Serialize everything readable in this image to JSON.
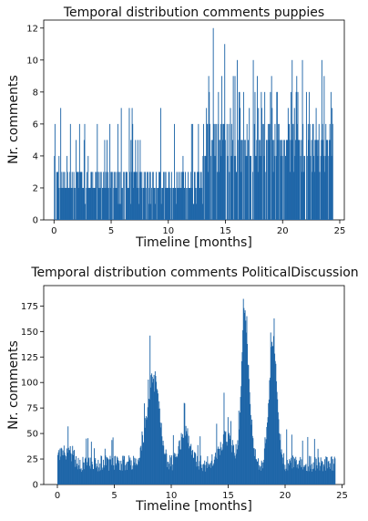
{
  "colors": {
    "bar": "#1f66a8",
    "axis": "#000000",
    "text": "#111111"
  },
  "chart_data": [
    {
      "type": "bar",
      "title": "Temporal distribution comments puppies",
      "xlabel": "Timeline [months]",
      "ylabel": "Nr. comments",
      "xlim": [
        -0.9,
        25.4
      ],
      "ylim": [
        0,
        12.5
      ],
      "xticks": [
        0,
        5,
        10,
        15,
        20,
        25
      ],
      "yticks": [
        0,
        2,
        4,
        6,
        8,
        10,
        12
      ],
      "grid": false,
      "bin_width_months": 0.05,
      "data_range": [
        0.0,
        24.4
      ],
      "peaks": [
        {
          "x": 0.4,
          "y": 4
        },
        {
          "x": 2.2,
          "y": 6
        },
        {
          "x": 4.6,
          "y": 5
        },
        {
          "x": 6.8,
          "y": 7
        },
        {
          "x": 9.3,
          "y": 7
        },
        {
          "x": 12.0,
          "y": 6
        },
        {
          "x": 13.5,
          "y": 9
        },
        {
          "x": 13.9,
          "y": 12
        },
        {
          "x": 14.9,
          "y": 11
        },
        {
          "x": 16.0,
          "y": 10
        },
        {
          "x": 17.4,
          "y": 10
        },
        {
          "x": 19.0,
          "y": 9
        },
        {
          "x": 22.3,
          "y": 8
        },
        {
          "x": 23.4,
          "y": 10
        }
      ]
    },
    {
      "type": "bar",
      "title": "Temporal distribution comments PoliticalDiscussion",
      "xlabel": "Timeline [months]",
      "ylabel": "Nr. comments",
      "xlim": [
        -1.2,
        25.2
      ],
      "ylim": [
        0,
        195
      ],
      "xticks": [
        0,
        5,
        10,
        15,
        20,
        25
      ],
      "yticks": [
        0,
        25,
        50,
        75,
        100,
        125,
        150,
        175
      ],
      "grid": false,
      "bin_width_months": 0.05,
      "data_range": [
        0.0,
        24.4
      ],
      "peaks": [
        {
          "x": 0.9,
          "y": 57
        },
        {
          "x": 2.5,
          "y": 45
        },
        {
          "x": 7.4,
          "y": 52
        },
        {
          "x": 8.1,
          "y": 146
        },
        {
          "x": 8.5,
          "y": 91
        },
        {
          "x": 11.1,
          "y": 80
        },
        {
          "x": 14.6,
          "y": 90
        },
        {
          "x": 16.3,
          "y": 182
        },
        {
          "x": 16.6,
          "y": 165
        },
        {
          "x": 18.7,
          "y": 149
        },
        {
          "x": 19.1,
          "y": 121
        },
        {
          "x": 21.5,
          "y": 43
        }
      ]
    }
  ]
}
